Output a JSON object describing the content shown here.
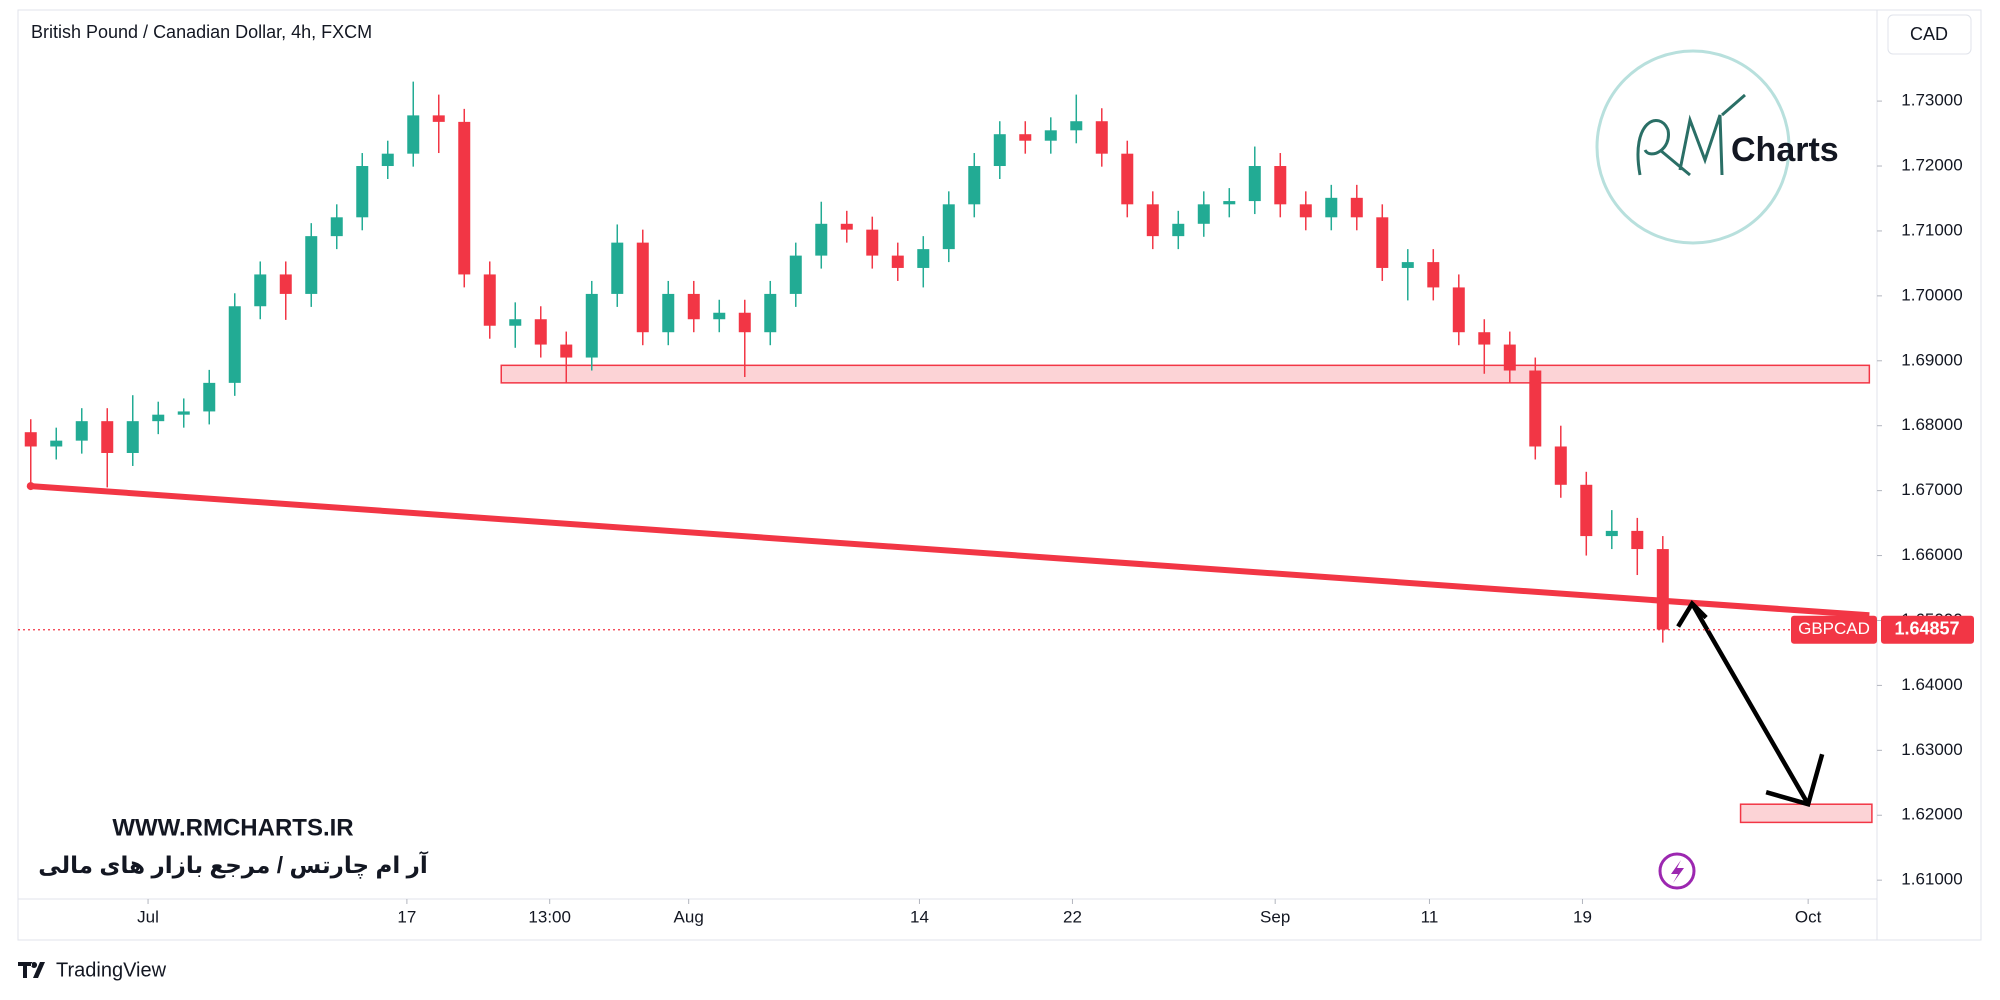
{
  "chart_data": {
    "type": "candlestick",
    "title": "British Pound / Canadian Dollar, 4h, FXCM",
    "currency": "CAD",
    "symbol": "GBPCAD",
    "last_price": 1.64857,
    "watermark": "WWW.RMCHARTS.IR",
    "watermark_subtitle": "آر ام چارتس / مرجع بازار های مالی",
    "logo_text": "Charts",
    "brand": "TradingView",
    "up_color": "#22ab94",
    "down_color": "#f23645",
    "grid": false,
    "xlim": [
      0,
      72.9
    ],
    "ylim": [
      1.6071,
      1.7436
    ],
    "xticks": [
      {
        "value": 5.1,
        "label": "Jul"
      },
      {
        "value": 15.25,
        "label": "17"
      },
      {
        "value": 20.85,
        "label": "13:00"
      },
      {
        "value": 26.3,
        "label": "Aug"
      },
      {
        "value": 35.35,
        "label": "14"
      },
      {
        "value": 41.35,
        "label": "22"
      },
      {
        "value": 49.3,
        "label": "Sep"
      },
      {
        "value": 55.35,
        "label": "11"
      },
      {
        "value": 61.35,
        "label": "19"
      },
      {
        "value": 70.2,
        "label": "Oct"
      }
    ],
    "yticks": [
      {
        "value": 1.61,
        "label": "1.61000"
      },
      {
        "value": 1.62,
        "label": "1.62000"
      },
      {
        "value": 1.63,
        "label": "1.63000"
      },
      {
        "value": 1.64,
        "label": "1.64000"
      },
      {
        "value": 1.65,
        "label": "1.65000"
      },
      {
        "value": 1.66,
        "label": "1.66000"
      },
      {
        "value": 1.67,
        "label": "1.67000"
      },
      {
        "value": 1.68,
        "label": "1.68000"
      },
      {
        "value": 1.69,
        "label": "1.69000"
      },
      {
        "value": 1.7,
        "label": "1.70000"
      },
      {
        "value": 1.71,
        "label": "1.71000"
      },
      {
        "value": 1.72,
        "label": "1.72000"
      },
      {
        "value": 1.73,
        "label": "1.73000"
      }
    ],
    "candles": {
      "x": [
        0.5,
        1.5,
        2.5,
        3.5,
        4.5,
        5.5,
        6.5,
        7.5,
        8.5,
        9.5,
        10.5,
        11.5,
        12.5,
        13.5,
        14.5,
        15.5,
        16.5,
        17.5,
        18.5,
        19.5,
        20.5,
        21.5,
        22.5,
        23.5,
        24.5,
        25.5,
        26.5,
        27.5,
        28.5,
        29.5,
        30.5,
        31.5,
        32.5,
        33.5,
        34.5,
        35.5,
        36.5,
        37.5,
        38.5,
        39.5,
        40.5,
        41.5,
        42.5,
        43.5,
        44.5,
        45.5,
        46.5,
        47.5,
        48.5,
        49.5,
        50.5,
        51.5,
        52.5,
        53.5,
        54.5,
        55.5,
        56.5,
        57.5,
        58.5,
        59.5,
        60.5,
        61.5,
        62.5,
        63.5,
        64.5
      ],
      "open": [
        1.679,
        1.6768,
        1.6777,
        1.6807,
        1.6758,
        1.6807,
        1.6817,
        1.6822,
        1.6866,
        1.6984,
        1.7033,
        1.7003,
        1.7092,
        1.7121,
        1.72,
        1.7219,
        1.7278,
        1.7268,
        1.7033,
        1.6954,
        1.6964,
        1.6925,
        1.6905,
        1.7003,
        1.7082,
        1.6944,
        1.7003,
        1.6964,
        1.6974,
        1.6944,
        1.7003,
        1.7062,
        1.7111,
        1.7102,
        1.7062,
        1.7043,
        1.7072,
        1.7141,
        1.72,
        1.7249,
        1.7239,
        1.7255,
        1.7269,
        1.7219,
        1.7141,
        1.7092,
        1.7111,
        1.7141,
        1.7146,
        1.72,
        1.7141,
        1.7121,
        1.7151,
        1.7121,
        1.7043,
        1.7052,
        1.7013,
        1.6944,
        1.6925,
        1.6885,
        1.6768,
        1.6709,
        1.663,
        1.6638,
        1.661
      ],
      "high": [
        1.681,
        1.6797,
        1.6827,
        1.6827,
        1.6847,
        1.6837,
        1.6842,
        1.6886,
        1.7004,
        1.7053,
        1.7053,
        1.7112,
        1.7141,
        1.722,
        1.7239,
        1.733,
        1.731,
        1.7288,
        1.7053,
        1.699,
        1.6984,
        1.6945,
        1.7023,
        1.711,
        1.7102,
        1.7023,
        1.7023,
        1.6994,
        1.6994,
        1.7023,
        1.7082,
        1.7145,
        1.7131,
        1.7122,
        1.7082,
        1.7092,
        1.7161,
        1.722,
        1.7269,
        1.7269,
        1.7275,
        1.731,
        1.7289,
        1.7239,
        1.7161,
        1.7131,
        1.7161,
        1.7166,
        1.723,
        1.722,
        1.7161,
        1.7171,
        1.7171,
        1.7141,
        1.7072,
        1.7072,
        1.7033,
        1.6964,
        1.6945,
        1.6905,
        1.68,
        1.6729,
        1.667,
        1.6658,
        1.663
      ],
      "low": [
        1.6705,
        1.6748,
        1.6757,
        1.6705,
        1.6738,
        1.6787,
        1.6797,
        1.6802,
        1.6846,
        1.6964,
        1.6963,
        1.6983,
        1.7072,
        1.7101,
        1.718,
        1.7199,
        1.722,
        1.7013,
        1.6934,
        1.692,
        1.6905,
        1.6865,
        1.6885,
        1.6983,
        1.6924,
        1.6924,
        1.6944,
        1.6944,
        1.6875,
        1.6924,
        1.6983,
        1.7042,
        1.7082,
        1.7042,
        1.7023,
        1.7013,
        1.7052,
        1.7121,
        1.718,
        1.7219,
        1.7219,
        1.7235,
        1.7199,
        1.7121,
        1.7072,
        1.7072,
        1.7091,
        1.7121,
        1.7126,
        1.7121,
        1.7101,
        1.7101,
        1.7101,
        1.7023,
        1.6993,
        1.6993,
        1.6924,
        1.688,
        1.6865,
        1.6748,
        1.6689,
        1.66,
        1.661,
        1.657,
        1.6466
      ],
      "close": [
        1.6768,
        1.6777,
        1.6807,
        1.6758,
        1.6807,
        1.6817,
        1.6822,
        1.6866,
        1.6984,
        1.7033,
        1.7003,
        1.7092,
        1.7121,
        1.72,
        1.7219,
        1.7278,
        1.7268,
        1.7033,
        1.6954,
        1.6964,
        1.6925,
        1.6905,
        1.7003,
        1.7082,
        1.6944,
        1.7003,
        1.6964,
        1.6974,
        1.6944,
        1.7003,
        1.7062,
        1.7111,
        1.7102,
        1.7062,
        1.7043,
        1.7072,
        1.7141,
        1.72,
        1.7249,
        1.7239,
        1.7255,
        1.7269,
        1.7219,
        1.7141,
        1.7092,
        1.7111,
        1.7141,
        1.7146,
        1.72,
        1.7141,
        1.7121,
        1.7151,
        1.7121,
        1.7043,
        1.7052,
        1.7013,
        1.6944,
        1.6925,
        1.6885,
        1.6768,
        1.6709,
        1.663,
        1.6638,
        1.661,
        1.6486
      ]
    },
    "support_zone": {
      "x": [
        18.95,
        72.6
      ],
      "y": [
        1.6866,
        1.6893
      ],
      "color": "#f23645"
    },
    "target_zone": {
      "x": [
        67.55,
        72.7
      ],
      "y": [
        1.6189,
        1.6217
      ],
      "color": "#f23645"
    },
    "trendline": {
      "x": [
        0.5,
        72.6
      ],
      "y": [
        1.6707,
        1.6508
      ],
      "color": "#f23645"
    },
    "arrow": {
      "x": [
        65.65,
        70.2
      ],
      "y": [
        1.6526,
        1.6217
      ],
      "color": "#000000"
    }
  }
}
